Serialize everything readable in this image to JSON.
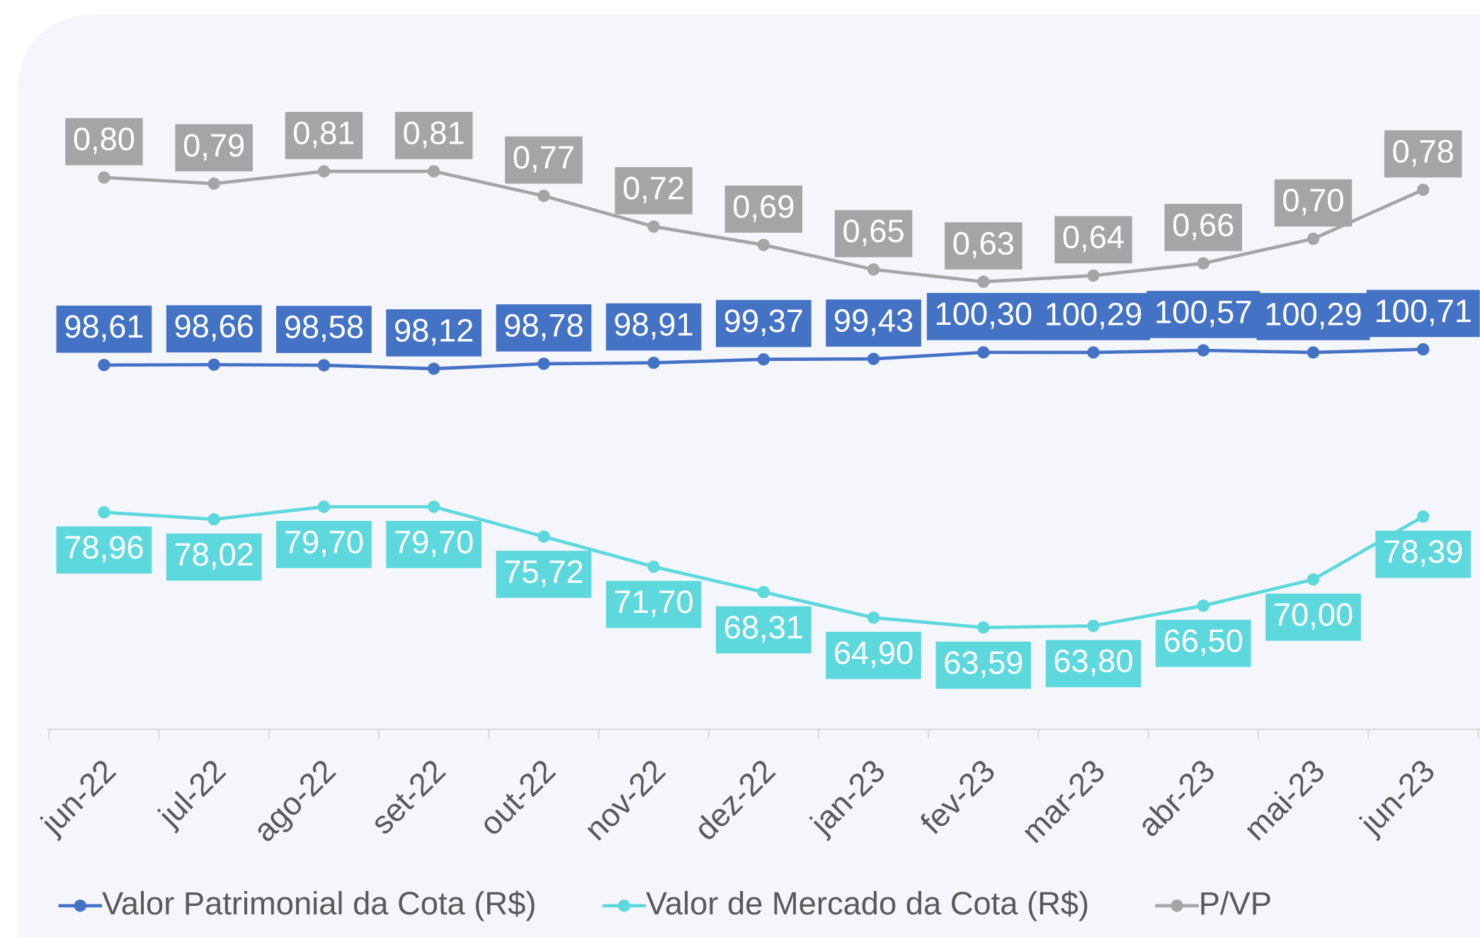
{
  "chart_data": {
    "type": "line",
    "categories": [
      "jun-22",
      "jul-22",
      "ago-22",
      "set-22",
      "out-22",
      "nov-22",
      "dez-22",
      "jan-23",
      "fev-23",
      "mar-23",
      "abr-23",
      "mai-23",
      "jun-23"
    ],
    "series": [
      {
        "name": "Valor Patrimonial da Cota (R$)",
        "color": "#4472c4",
        "values": [
          98.61,
          98.66,
          98.58,
          98.12,
          98.78,
          98.91,
          99.37,
          99.43,
          100.3,
          100.29,
          100.57,
          100.29,
          100.71
        ],
        "value_labels": [
          "98,61",
          "98,66",
          "98,58",
          "98,12",
          "98,78",
          "98,91",
          "99,37",
          "99,43",
          "100,30",
          "100,29",
          "100,57",
          "100,29",
          "100,71"
        ],
        "label_position": "above"
      },
      {
        "name": "Valor de Mercado da Cota (R$)",
        "color": "#5dd8dd",
        "values": [
          78.96,
          78.02,
          79.7,
          79.7,
          75.72,
          71.7,
          68.31,
          64.9,
          63.59,
          63.8,
          66.5,
          70.0,
          78.39
        ],
        "value_labels": [
          "78,96",
          "78,02",
          "79,70",
          "79,70",
          "75,72",
          "71,70",
          "68,31",
          "64,90",
          "63,59",
          "63,80",
          "66,50",
          "70,00",
          "78,39"
        ],
        "label_position": "below"
      },
      {
        "name": "P/VP",
        "color": "#a5a5a5",
        "axis": "y2",
        "values": [
          0.8,
          0.79,
          0.81,
          0.81,
          0.77,
          0.72,
          0.69,
          0.65,
          0.63,
          0.64,
          0.66,
          0.7,
          0.78
        ],
        "value_labels": [
          "0,80",
          "0,79",
          "0,81",
          "0,81",
          "0,77",
          "0,72",
          "0,69",
          "0,65",
          "0,63",
          "0,64",
          "0,66",
          "0,70",
          "0,78"
        ],
        "label_position": "above"
      }
    ],
    "ylim": [
      50,
      140
    ],
    "y2lim": [
      -0.1,
      1.0
    ],
    "legend": "bottom"
  }
}
